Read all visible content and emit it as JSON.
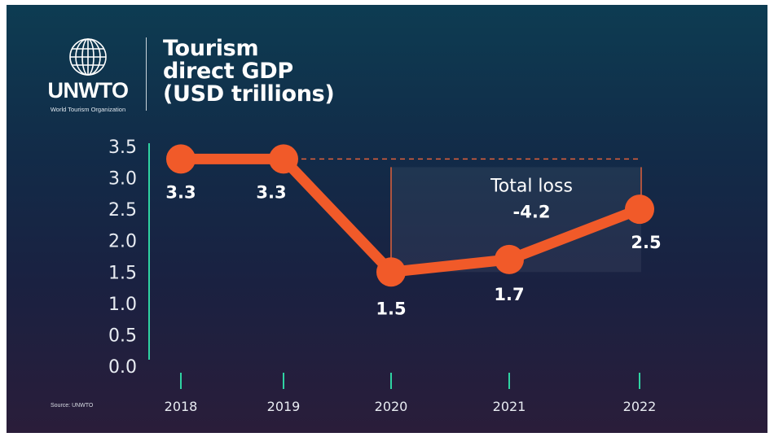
{
  "logo": {
    "name": "UNWTO",
    "subtitle": "World Tourism Organization",
    "icon": "globe-icon"
  },
  "source": "Source: UNWTO",
  "colors": {
    "line": "#f15a29",
    "axis": "#2fd3a2",
    "reference": "#e0603a",
    "loss_box": "rgba(255,255,255,0.06)"
  },
  "chart_data": {
    "type": "line",
    "title": [
      "Tourism",
      "direct GDP",
      "(USD trillions)"
    ],
    "xlabel": "",
    "ylabel": "",
    "categories": [
      "2018",
      "2019",
      "2020",
      "2021",
      "2022"
    ],
    "series": [
      {
        "values": [
          3.3,
          3.3,
          1.5,
          1.7,
          2.5
        ]
      }
    ],
    "data_labels": [
      "3.3",
      "3.3",
      "1.5",
      "1.7",
      "2.5"
    ],
    "ylim": [
      0,
      3.5
    ],
    "yticks": [
      "0.0",
      "0.5",
      "1.0",
      "1.5",
      "2.0",
      "2.5",
      "3.0",
      "3.5"
    ],
    "grid": false,
    "annotation": {
      "label": "Total loss",
      "value": "-4.2",
      "from_category": "2020",
      "to_category": "2022",
      "reference_value": 3.3
    }
  }
}
